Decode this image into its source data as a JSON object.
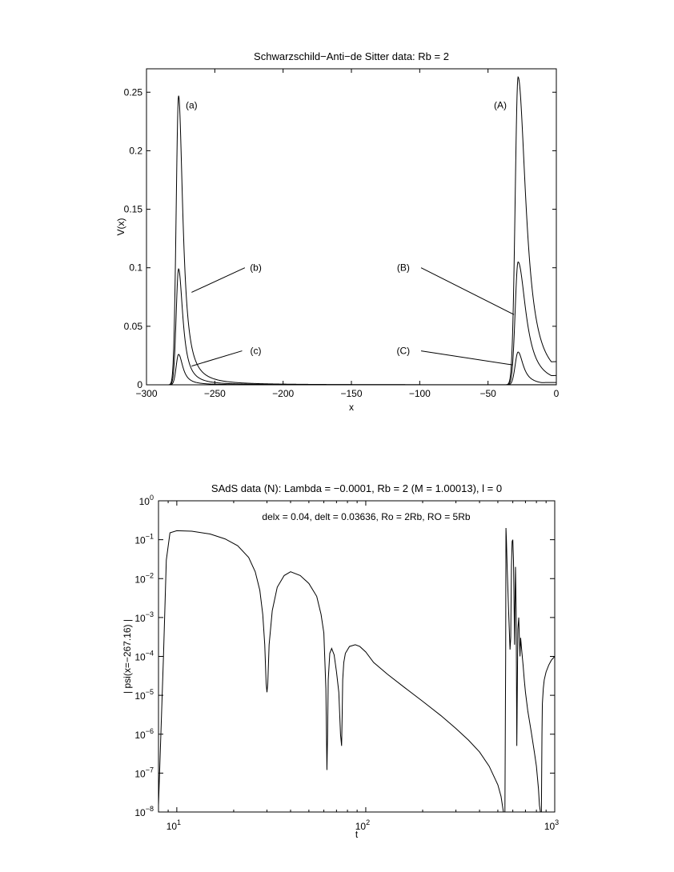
{
  "chart_data": [
    {
      "type": "line",
      "title": "Schwarzschild−Anti−de Sitter data: Rb = 2",
      "xlabel": "x",
      "ylabel": "V(x)",
      "xlim": [
        -300,
        0
      ],
      "ylim": [
        0,
        0.27
      ],
      "x_tick_labels": [
        "−300",
        "−250",
        "−200",
        "−150",
        "−100",
        "−50",
        "0"
      ],
      "x_ticks": [
        -300,
        -250,
        -200,
        -150,
        -100,
        -50,
        0
      ],
      "y_tick_labels": [
        "0",
        "0.05",
        "0.1",
        "0.15",
        "0.2",
        "0.25"
      ],
      "y_ticks": [
        0,
        0.05,
        0.1,
        0.15,
        0.2,
        0.25
      ],
      "grid": false,
      "series": [
        {
          "name": "(a)",
          "peak_x": -276.5,
          "peak_y": 0.247,
          "width_left": 2.5,
          "tail": 6.5
        },
        {
          "name": "(b)",
          "peak_x": -276.5,
          "peak_y": 0.099,
          "width_left": 2.5,
          "tail": 6.5
        },
        {
          "name": "(c)",
          "peak_x": -276.5,
          "peak_y": 0.026,
          "width_left": 2.5,
          "tail": 6.5
        },
        {
          "name": "(A)",
          "peak_x": -28,
          "peak_y": 0.263,
          "width_left": 3.0,
          "tail": 12.0,
          "end_y": 0.02
        },
        {
          "name": "(B)",
          "peak_x": -28,
          "peak_y": 0.105,
          "width_left": 3.0,
          "tail": 12.0,
          "end_y": 0.008
        },
        {
          "name": "(C)",
          "peak_x": -28,
          "peak_y": 0.028,
          "width_left": 3.0,
          "tail": 8.0,
          "end_y": 0.002
        }
      ],
      "annotations": [
        {
          "text": "(a)",
          "x": -267,
          "y": 0.239
        },
        {
          "text": "(A)",
          "x": -41,
          "y": 0.239
        },
        {
          "text": "(b)",
          "x": -220,
          "y": 0.1
        },
        {
          "text": "(B)",
          "x": -112,
          "y": 0.1
        },
        {
          "text": "(c)",
          "x": -220,
          "y": 0.029
        },
        {
          "text": "(C)",
          "x": -112,
          "y": 0.029
        }
      ]
    },
    {
      "type": "line",
      "title": "SAdS data (N): Lambda = −0.0001, Rb = 2 (M = 1.00013), l = 0",
      "subtitle": "delx = 0.04, delt = 0.03636, Ro = 2Rb, RO = 5Rb",
      "xlabel": "t",
      "ylabel": "| psi(x=−267.16) |",
      "x_scale": "log",
      "y_scale": "log",
      "xlim": [
        8,
        1000
      ],
      "ylim": [
        1e-08,
        1
      ],
      "x_tick_labels": [
        {
          "base": "10",
          "exp": "1"
        },
        {
          "base": "10",
          "exp": "2"
        },
        {
          "base": "10",
          "exp": "3"
        }
      ],
      "x_ticks": [
        10,
        100,
        1000
      ],
      "y_tick_labels": [
        {
          "base": "10",
          "exp": "−8"
        },
        {
          "base": "10",
          "exp": "−7"
        },
        {
          "base": "10",
          "exp": "−6"
        },
        {
          "base": "10",
          "exp": "−5"
        },
        {
          "base": "10",
          "exp": "−4"
        },
        {
          "base": "10",
          "exp": "−3"
        },
        {
          "base": "10",
          "exp": "−2"
        },
        {
          "base": "10",
          "exp": "−1"
        },
        {
          "base": "10",
          "exp": "0"
        }
      ],
      "y_ticks": [
        1e-08,
        1e-07,
        1e-06,
        1e-05,
        0.0001,
        0.001,
        0.01,
        0.1,
        1
      ],
      "grid": false,
      "series": [
        {
          "x": [
            8,
            8.5,
            8.8,
            9.2,
            10,
            12,
            15,
            18,
            21,
            24,
            26,
            27.5,
            28.5,
            29.2,
            29.7,
            30,
            30.3,
            30.8,
            32,
            34,
            37,
            40,
            45,
            50,
            55,
            58,
            60,
            61.5,
            62.3,
            62.8,
            63.3,
            64.5,
            66,
            68,
            70,
            72,
            73.5,
            74.5,
            75,
            75.5,
            76.5,
            78,
            82,
            88,
            93,
            100,
            110,
            130,
            160,
            200,
            250,
            300,
            350,
            400,
            450,
            500,
            520,
            535,
            545,
            550,
            552,
            555,
            560,
            570,
            580,
            585,
            590,
            595,
            600,
            605,
            610,
            613,
            616,
            620,
            625,
            630,
            638,
            645,
            650,
            655,
            660,
            670,
            680,
            690,
            700,
            720,
            750,
            780,
            800,
            820,
            830,
            840,
            845,
            850,
            853,
            856,
            860,
            870,
            880,
            900,
            930,
            960,
            1000
          ],
          "y": [
            1.5e-08,
            0.0001,
            0.03,
            0.15,
            0.17,
            0.165,
            0.14,
            0.105,
            0.07,
            0.035,
            0.015,
            0.005,
            0.0012,
            0.0002,
            2e-05,
            1.2e-05,
            2e-05,
            0.0002,
            0.0015,
            0.006,
            0.012,
            0.015,
            0.012,
            0.0075,
            0.0035,
            0.0012,
            0.0004,
            1.5e-05,
            1.2e-07,
            1e-06,
            2.5e-05,
            0.00012,
            0.00016,
            0.00011,
            4e-05,
            1.2e-05,
            1e-06,
            5e-07,
            3e-06,
            2.5e-05,
            7e-05,
            0.00012,
            0.00018,
            0.0002,
            0.00018,
            0.00013,
            7e-05,
            3.5e-05,
            1.6e-05,
            7e-06,
            3e-06,
            1.4e-06,
            7e-07,
            3.5e-07,
            1.5e-07,
            5e-08,
            2.5e-08,
            1e-08,
            1e-08,
            0.0001,
            0.2,
            0.1,
            0.02,
            0.0015,
            0.00015,
            0.0003,
            0.02,
            0.09,
            0.1,
            0.03,
            0.0015,
            0.0002,
            0.002,
            0.02,
            0.0015,
            5e-07,
            0.0005,
            0.001,
            0.0003,
            0.0001,
            0.0003,
            0.00013,
            6e-05,
            2.5e-05,
            1.2e-05,
            4e-06,
            1.2e-06,
            3.5e-07,
            1.5e-07,
            4e-08,
            1.5e-08,
            1e-08,
            1e-08,
            1e-08,
            1e-07,
            1e-06,
            6e-06,
            1.5e-05,
            2.5e-05,
            4e-05,
            6e-05,
            8e-05,
            0.0001
          ]
        }
      ]
    }
  ]
}
